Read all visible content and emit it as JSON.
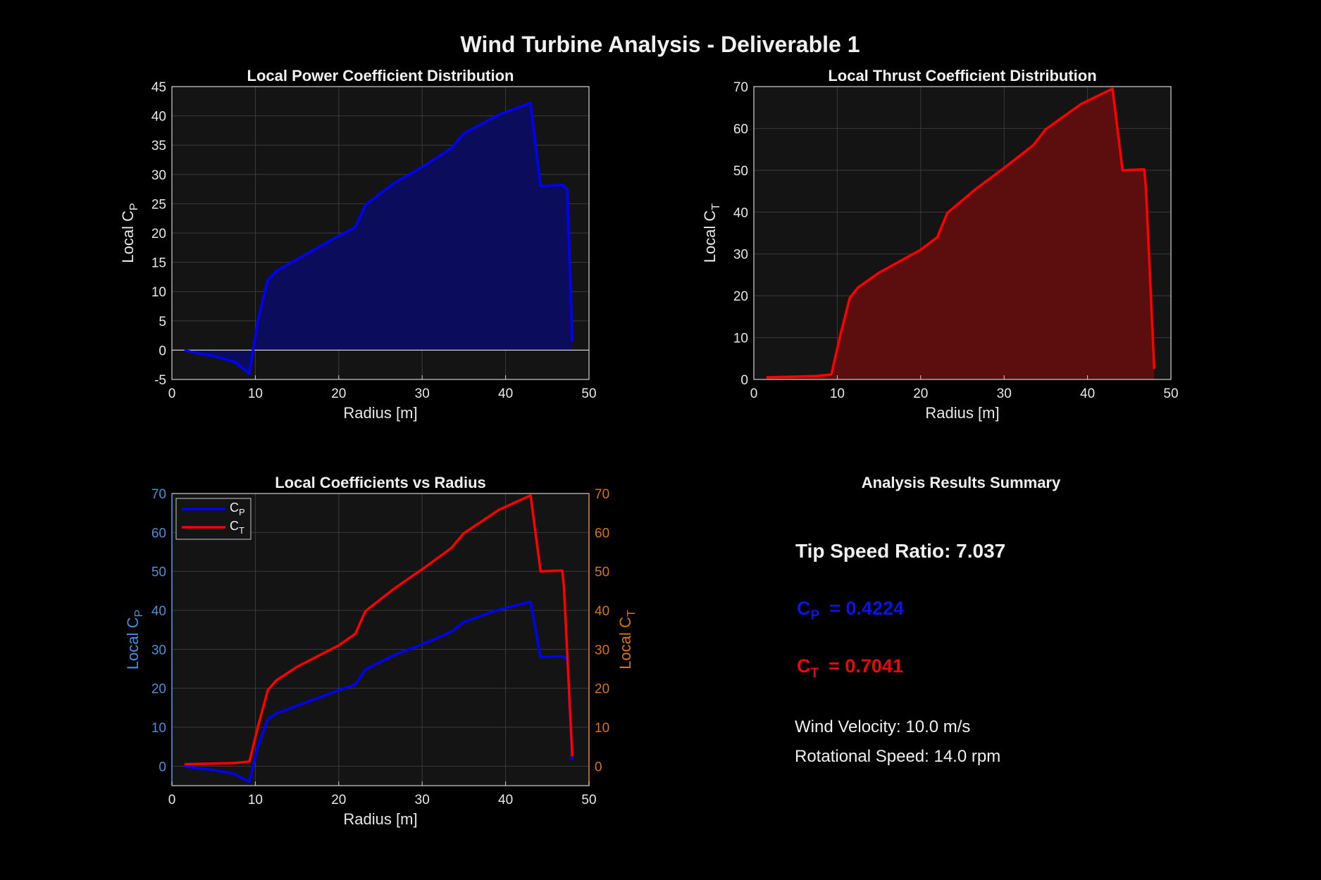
{
  "figure": {
    "title": "Wind Turbine Analysis - Deliverable 1"
  },
  "colors": {
    "background": "#000000",
    "axes_bg": "#141414",
    "grid": "#3a3a3a",
    "cp": "#0000ff",
    "ct": "#ff0000",
    "cp_fill": "#0c0c5c",
    "ct_fill": "#5c0e0e",
    "left_axis": "#4a90d9",
    "right_axis": "#d9731a"
  },
  "chart_data": [
    {
      "id": "cp",
      "type": "area",
      "title": "Local Power Coefficient Distribution",
      "xlabel": "Radius [m]",
      "ylabel": {
        "main": "Local  C",
        "sub": "P"
      },
      "xlim": [
        0,
        50
      ],
      "ylim": [
        -5,
        45
      ],
      "xticks": [
        0,
        10,
        20,
        30,
        40,
        50
      ],
      "yticks": [
        -5,
        0,
        5,
        10,
        15,
        20,
        25,
        30,
        35,
        40,
        45
      ],
      "grid": true,
      "x": [
        1.5,
        3,
        5,
        7.5,
        9.3,
        10.3,
        11.5,
        12.5,
        15,
        20,
        22,
        23.2,
        26.6,
        30.3,
        33.5,
        35,
        39.2,
        43,
        44.2,
        46.8,
        47.4,
        48
      ],
      "values": [
        0,
        -0.5,
        -1,
        -2,
        -4,
        5,
        12,
        13.5,
        15.5,
        19.5,
        21,
        24.8,
        28.5,
        31.5,
        34.5,
        37,
        40.2,
        42.2,
        28,
        28.2,
        27.5,
        1.5
      ]
    },
    {
      "id": "ct",
      "type": "area",
      "title": "Local Thrust Coefficient Distribution",
      "xlabel": "Radius [m]",
      "ylabel": {
        "main": "Local  C",
        "sub": "T"
      },
      "xlim": [
        0,
        50
      ],
      "ylim": [
        0,
        70
      ],
      "xticks": [
        0,
        10,
        20,
        30,
        40,
        50
      ],
      "yticks": [
        0,
        10,
        20,
        30,
        40,
        50,
        60,
        70
      ],
      "grid": true,
      "x": [
        1.5,
        7.5,
        9.3,
        10.3,
        11.5,
        12.5,
        15,
        20,
        22,
        23.2,
        26.6,
        30.3,
        33.5,
        35,
        39.2,
        43,
        44.2,
        46.8,
        47,
        48
      ],
      "values": [
        0.5,
        0.8,
        1.2,
        10,
        19.5,
        22,
        25.5,
        31,
        34,
        39.8,
        45.5,
        51,
        56,
        59.8,
        65.8,
        69.5,
        50,
        50.2,
        46,
        2.5
      ]
    },
    {
      "id": "dual",
      "type": "line",
      "title": "Local Coefficients vs Radius",
      "xlabel": "Radius [m]",
      "ylabel_left": {
        "main": "Local  C",
        "sub": "P"
      },
      "ylabel_right": {
        "main": "Local  C",
        "sub": "T"
      },
      "xlim": [
        0,
        50
      ],
      "ylim": [
        -5,
        70
      ],
      "xticks": [
        0,
        10,
        20,
        30,
        40,
        50
      ],
      "yticks": [
        0,
        10,
        20,
        30,
        40,
        50,
        60,
        70
      ],
      "grid": true,
      "legend": "top-left",
      "series": [
        {
          "name": "C",
          "sub": "P",
          "color": "#0000ff",
          "x": [
            1.5,
            3,
            5,
            7.5,
            9.3,
            10.3,
            11.5,
            12.5,
            15,
            20,
            22,
            23.2,
            26.6,
            30.3,
            33.5,
            35,
            39.2,
            43,
            44.2,
            46.8,
            47.4,
            48
          ],
          "values": [
            0,
            -0.5,
            -1,
            -2,
            -4,
            5,
            12,
            13.5,
            15.5,
            19.5,
            21,
            24.8,
            28.5,
            31.5,
            34.5,
            37,
            40.2,
            42.2,
            28,
            28.2,
            27.5,
            1.5
          ]
        },
        {
          "name": "C",
          "sub": "T",
          "color": "#ff0000",
          "x": [
            1.5,
            7.5,
            9.3,
            10.3,
            11.5,
            12.5,
            15,
            20,
            22,
            23.2,
            26.6,
            30.3,
            33.5,
            35,
            39.2,
            43,
            44.2,
            46.8,
            47,
            48
          ],
          "values": [
            0.5,
            0.8,
            1.2,
            10,
            19.5,
            22,
            25.5,
            31,
            34,
            39.8,
            45.5,
            51,
            56,
            59.8,
            65.8,
            69.5,
            50,
            50.2,
            46,
            2.5
          ]
        }
      ]
    }
  ],
  "summary": {
    "title": "Analysis Results Summary",
    "tsr": "Tip Speed Ratio: 7.037",
    "cp": {
      "main": "C",
      "sub": "P",
      "value": "=  0.4224"
    },
    "ct": {
      "main": "C",
      "sub": "T",
      "value": "=  0.7041"
    },
    "wind": "Wind Velocity: 10.0 m/s",
    "rot": "Rotational Speed: 14.0 rpm"
  }
}
